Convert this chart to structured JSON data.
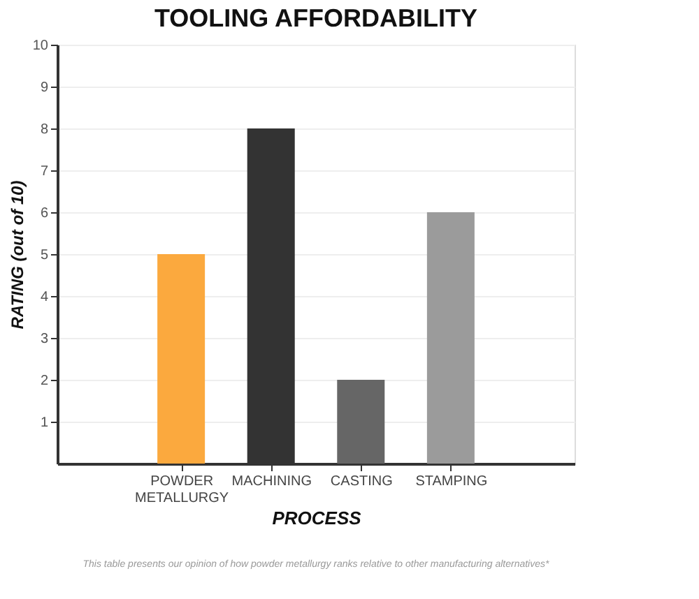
{
  "chart_data": {
    "type": "bar",
    "title": "TOOLING AFFORDABILITY",
    "xlabel": "PROCESS",
    "ylabel": "RATING (out of 10)",
    "categories": [
      "POWDER METALLURGY",
      "MACHINING",
      "CASTING",
      "STAMPING"
    ],
    "values": [
      5,
      8,
      2,
      6
    ],
    "colors": [
      "#fba93e",
      "#333333",
      "#666666",
      "#9b9b9b"
    ],
    "ylim": [
      0,
      10
    ],
    "yticks": [
      1,
      2,
      3,
      4,
      5,
      6,
      7,
      8,
      9,
      10
    ],
    "grid": "y",
    "annotations": [
      "This table presents our opinion of how powder metallurgy ranks relative to other manufacturing alternatives*"
    ]
  }
}
